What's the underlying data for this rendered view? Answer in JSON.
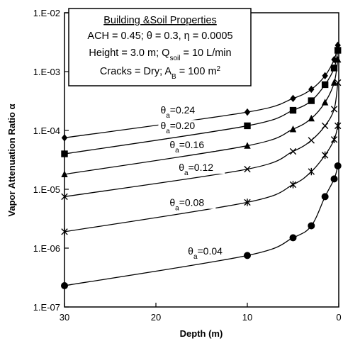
{
  "chart_data": {
    "type": "line",
    "xlabel": "Depth (m)",
    "ylabel": "Vapor Attenuation Ratio α",
    "xlim": [
      30,
      0
    ],
    "ylim": [
      1e-07,
      0.01
    ],
    "y_scale": "log",
    "x_ticks": [
      {
        "value": 30,
        "label": "30"
      },
      {
        "value": 20,
        "label": "20"
      },
      {
        "value": 10,
        "label": "10"
      },
      {
        "value": 0,
        "label": "0"
      }
    ],
    "y_ticks": [
      {
        "value": 1e-07,
        "label": "1.E-07"
      },
      {
        "value": 1e-06,
        "label": "1.E-06"
      },
      {
        "value": 1e-05,
        "label": "1.E-05"
      },
      {
        "value": 0.0001,
        "label": "1.E-04"
      },
      {
        "value": 0.001,
        "label": "1.E-03"
      },
      {
        "value": 0.01,
        "label": "1.E-02"
      }
    ],
    "grid": false,
    "legend": {
      "title": "Building &Soil Properties",
      "lines": [
        "ACH = 0.45; θ = 0.3, η = 0.0005",
        "Height = 3.0 m; Q",
        "Cracks = Dry; A"
      ],
      "q_sub": "soil",
      "q_tail": " = 10 L/min",
      "a_sub": "B",
      "a_tail": " = 100 m",
      "a_sup": "2"
    },
    "series": [
      {
        "label_main": "θ",
        "label_sub": "a",
        "label_val": "=0.24",
        "marker": "diamond",
        "label_at": [
          19.5,
          0.000195
        ],
        "x": [
          30,
          10,
          5,
          3,
          1.5,
          0.5,
          0.1
        ],
        "y": [
          7.5e-05,
          0.000205,
          0.00035,
          0.0005,
          0.00085,
          0.0016,
          0.0028
        ]
      },
      {
        "label_main": "θ",
        "label_sub": "a",
        "label_val": "=0.20",
        "marker": "square",
        "label_at": [
          19.5,
          0.000105
        ],
        "x": [
          30,
          10,
          5,
          3,
          1.5,
          0.5,
          0.1
        ],
        "y": [
          4e-05,
          0.00012,
          0.00022,
          0.00032,
          0.0006,
          0.00115,
          0.0023
        ]
      },
      {
        "label_main": "θ",
        "label_sub": "a",
        "label_val": "=0.16",
        "marker": "triangle",
        "label_at": [
          18.5,
          5e-05
        ],
        "x": [
          30,
          10,
          5,
          3,
          1.5,
          0.5,
          0.1
        ],
        "y": [
          1.8e-05,
          5.5e-05,
          0.000105,
          0.00016,
          0.0003,
          0.00065,
          0.0016
        ]
      },
      {
        "label_main": "θ",
        "label_sub": "a",
        "label_val": "=0.12",
        "marker": "x",
        "label_at": [
          17.5,
          2.05e-05
        ],
        "x": [
          30,
          10,
          5,
          3,
          1.5,
          0.5,
          0.1
        ],
        "y": [
          7.5e-06,
          2.2e-05,
          4.4e-05,
          6.8e-05,
          0.00012,
          0.00023,
          0.00065
        ]
      },
      {
        "label_main": "θ",
        "label_sub": "a",
        "label_val": "=0.08",
        "marker": "star",
        "label_at": [
          18.5,
          5.2e-06
        ],
        "x": [
          30,
          10,
          5,
          3,
          1.5,
          0.5,
          0.1
        ],
        "y": [
          1.9e-06,
          6e-06,
          1.2e-05,
          2e-05,
          3.8e-05,
          7e-05,
          0.00012
        ]
      },
      {
        "label_main": "θ",
        "label_sub": "a",
        "label_val": "=0.04",
        "marker": "circle",
        "label_at": [
          16.5,
          7.8e-07
        ],
        "x": [
          30,
          10,
          5,
          3,
          1.5,
          0.5,
          0.1
        ],
        "y": [
          2.3e-07,
          7.5e-07,
          1.5e-06,
          2.4e-06,
          7.5e-06,
          1.5e-05,
          2.5e-05
        ]
      }
    ]
  }
}
